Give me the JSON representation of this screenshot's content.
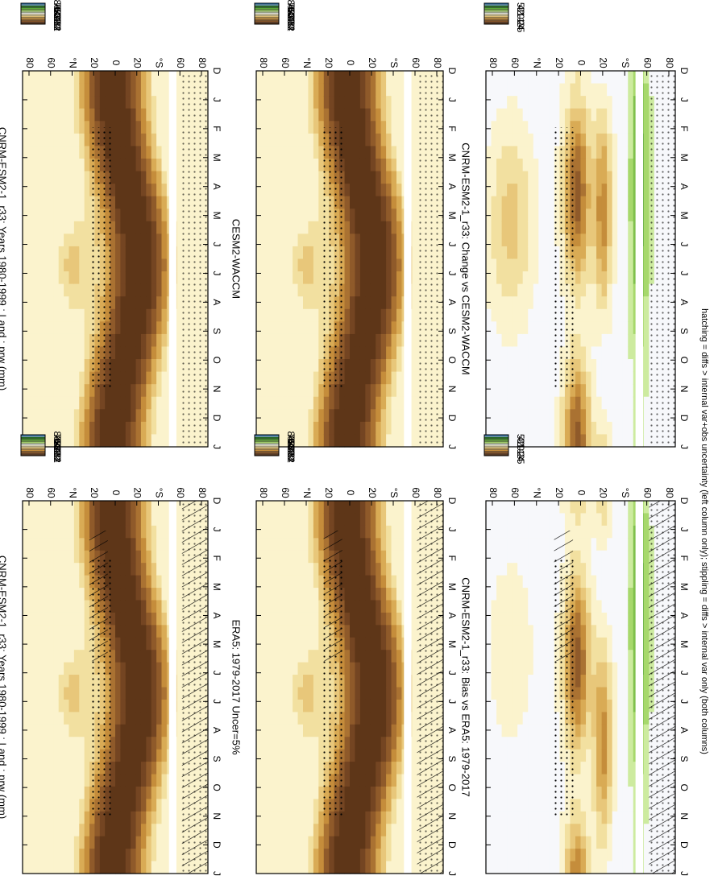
{
  "figure": {
    "footnote": "hatching = diffs > internal var+obs uncertainty (left column only); stippling = diffs > internal var only (both columns)"
  },
  "palettes": {
    "absolute": [
      "#1e7ac2",
      "#8fc8ee",
      "#1f6b1f",
      "#3e8e2c",
      "#5da83a",
      "#7fc04c",
      "#a7d86c",
      "#cdeb9f",
      "#f7f8fb",
      "#fbf3cd",
      "#f2e0a0",
      "#e8c77a",
      "#d9ab55",
      "#c58d3b",
      "#aa7232",
      "#8f5a2a",
      "#744522",
      "#5e3618"
    ],
    "difference": [
      "#1e7ac2",
      "#8fc8ee",
      "#1f6b1f",
      "#3e8e2c",
      "#5da83a",
      "#7fc04c",
      "#a7d86c",
      "#cdeb9f",
      "#f7f8fb",
      "#fbf3cd",
      "#f2e0a0",
      "#e8c77a",
      "#d9ab55",
      "#c58d3b",
      "#aa7232",
      "#8f5a2a",
      "#744522",
      "#5e3618"
    ]
  },
  "colorbars": {
    "absolute_labels": [
      "84",
      "76",
      "68",
      "60",
      "52",
      "44",
      "36",
      "28",
      "20",
      "12",
      "4"
    ],
    "difference_labels": [
      "5",
      "4",
      "3",
      "2",
      "1",
      "0",
      "-1",
      "-2",
      "-3",
      "-4",
      "-5"
    ]
  },
  "axes": {
    "month_labels": [
      "D",
      "J",
      "F",
      "M",
      "A",
      "M",
      "J",
      "J",
      "A",
      "S",
      "O",
      "N",
      "D",
      "J"
    ],
    "lat_labels": [
      "80",
      "60",
      "°N",
      "20",
      "0",
      "20",
      "°S",
      "60",
      "80"
    ]
  },
  "chart_data": [
    {
      "type": "heatmap",
      "title": "CNRM-ESM2-1_r33: Years 1980-1999 : Land : prw (mm)",
      "x": "month",
      "y": "latitude",
      "value": "prw (mm)",
      "colorbar": "absolute",
      "hatching": true,
      "stippling": true
    },
    {
      "type": "heatmap",
      "title": "CNRM-ESM2-1_r33: Years 1980-1999 : Land : prw (mm)",
      "x": "month",
      "y": "latitude",
      "value": "prw (mm)",
      "colorbar": "absolute",
      "hatching": false,
      "stippling": true
    },
    {
      "type": "heatmap",
      "title": "ERA5: 1979-2017 Uncer=5%",
      "x": "month",
      "y": "latitude",
      "value": "prw (mm)",
      "colorbar": "absolute",
      "hatching": true,
      "stippling": true
    },
    {
      "type": "heatmap",
      "title": "CESM2-WACCM",
      "x": "month",
      "y": "latitude",
      "value": "prw (mm)",
      "colorbar": "absolute",
      "hatching": false,
      "stippling": true
    },
    {
      "type": "heatmap",
      "title": "CNRM-ESM2-1_r33: Bias vs ERA5: 1979-2017",
      "x": "month",
      "y": "latitude",
      "value": "prw difference (mm)",
      "colorbar": "difference",
      "hatching": true,
      "stippling": true
    },
    {
      "type": "heatmap",
      "title": "CNRM-ESM2-1_r33: Change vs CESM2-WACCM",
      "x": "month",
      "y": "latitude",
      "value": "prw difference (mm)",
      "colorbar": "difference",
      "hatching": false,
      "stippling": true
    }
  ]
}
